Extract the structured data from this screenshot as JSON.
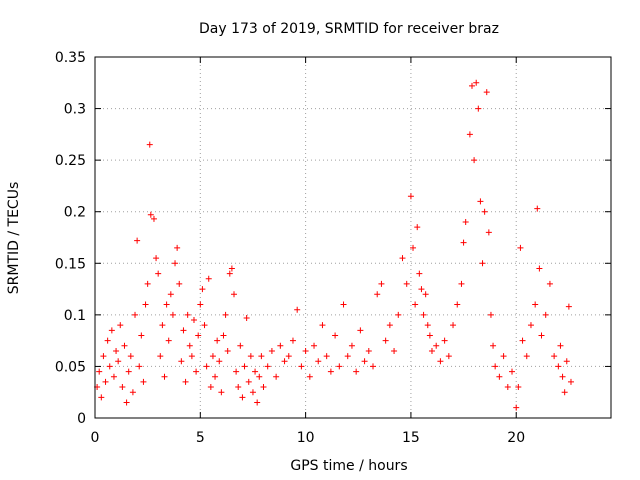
{
  "chart_data": {
    "type": "scatter",
    "title": "Day 173 of 2019, SRMTID for receiver braz",
    "xlabel": "GPS time / hours",
    "ylabel": "SRMTID / TECUs",
    "xlim": [
      0,
      24.5
    ],
    "ylim": [
      0,
      0.35
    ],
    "xticks": [
      0,
      5,
      10,
      15,
      20
    ],
    "xtick_labels": [
      "0",
      "5",
      "10",
      "15",
      "20"
    ],
    "yticks": [
      0,
      0.05,
      0.1,
      0.15,
      0.2,
      0.25,
      0.3,
      0.35
    ],
    "ytick_labels": [
      "0",
      "0.05",
      "0.1",
      "0.15",
      "0.2",
      "0.25",
      "0.3",
      "0.35"
    ],
    "grid": true,
    "marker": "plus",
    "color": "#ff0000",
    "series": [
      {
        "name": "SRMTID",
        "points": [
          [
            0.1,
            0.03
          ],
          [
            0.2,
            0.045
          ],
          [
            0.3,
            0.02
          ],
          [
            0.4,
            0.06
          ],
          [
            0.5,
            0.035
          ],
          [
            0.6,
            0.075
          ],
          [
            0.7,
            0.05
          ],
          [
            0.8,
            0.085
          ],
          [
            0.9,
            0.04
          ],
          [
            1.0,
            0.065
          ],
          [
            1.1,
            0.055
          ],
          [
            1.2,
            0.09
          ],
          [
            1.3,
            0.03
          ],
          [
            1.4,
            0.07
          ],
          [
            1.5,
            0.015
          ],
          [
            1.6,
            0.045
          ],
          [
            1.7,
            0.06
          ],
          [
            1.8,
            0.025
          ],
          [
            1.9,
            0.1
          ],
          [
            2.0,
            0.172
          ],
          [
            2.1,
            0.05
          ],
          [
            2.2,
            0.08
          ],
          [
            2.3,
            0.035
          ],
          [
            2.4,
            0.11
          ],
          [
            2.5,
            0.13
          ],
          [
            2.6,
            0.265
          ],
          [
            2.65,
            0.197
          ],
          [
            2.8,
            0.193
          ],
          [
            2.9,
            0.155
          ],
          [
            3.0,
            0.14
          ],
          [
            3.1,
            0.06
          ],
          [
            3.2,
            0.09
          ],
          [
            3.3,
            0.04
          ],
          [
            3.4,
            0.11
          ],
          [
            3.5,
            0.075
          ],
          [
            3.6,
            0.12
          ],
          [
            3.7,
            0.1
          ],
          [
            3.8,
            0.15
          ],
          [
            3.9,
            0.165
          ],
          [
            4.0,
            0.13
          ],
          [
            4.1,
            0.055
          ],
          [
            4.2,
            0.085
          ],
          [
            4.3,
            0.035
          ],
          [
            4.4,
            0.1
          ],
          [
            4.5,
            0.07
          ],
          [
            4.6,
            0.06
          ],
          [
            4.7,
            0.095
          ],
          [
            4.8,
            0.045
          ],
          [
            4.9,
            0.08
          ],
          [
            5.0,
            0.11
          ],
          [
            5.1,
            0.125
          ],
          [
            5.2,
            0.09
          ],
          [
            5.3,
            0.05
          ],
          [
            5.4,
            0.135
          ],
          [
            5.5,
            0.03
          ],
          [
            5.6,
            0.06
          ],
          [
            5.7,
            0.04
          ],
          [
            5.8,
            0.075
          ],
          [
            5.9,
            0.055
          ],
          [
            6.0,
            0.025
          ],
          [
            6.1,
            0.08
          ],
          [
            6.2,
            0.1
          ],
          [
            6.3,
            0.065
          ],
          [
            6.4,
            0.14
          ],
          [
            6.5,
            0.145
          ],
          [
            6.6,
            0.12
          ],
          [
            6.7,
            0.045
          ],
          [
            6.8,
            0.03
          ],
          [
            6.9,
            0.07
          ],
          [
            7.0,
            0.02
          ],
          [
            7.1,
            0.05
          ],
          [
            7.2,
            0.097
          ],
          [
            7.3,
            0.035
          ],
          [
            7.4,
            0.06
          ],
          [
            7.5,
            0.025
          ],
          [
            7.6,
            0.045
          ],
          [
            7.7,
            0.015
          ],
          [
            7.8,
            0.04
          ],
          [
            7.9,
            0.06
          ],
          [
            8.0,
            0.03
          ],
          [
            8.2,
            0.05
          ],
          [
            8.4,
            0.065
          ],
          [
            8.6,
            0.04
          ],
          [
            8.8,
            0.07
          ],
          [
            9.0,
            0.055
          ],
          [
            9.2,
            0.06
          ],
          [
            9.4,
            0.075
          ],
          [
            9.6,
            0.105
          ],
          [
            9.8,
            0.05
          ],
          [
            10.0,
            0.065
          ],
          [
            10.2,
            0.04
          ],
          [
            10.4,
            0.07
          ],
          [
            10.6,
            0.055
          ],
          [
            10.8,
            0.09
          ],
          [
            11.0,
            0.06
          ],
          [
            11.2,
            0.045
          ],
          [
            11.4,
            0.08
          ],
          [
            11.6,
            0.05
          ],
          [
            11.8,
            0.11
          ],
          [
            12.0,
            0.06
          ],
          [
            12.2,
            0.07
          ],
          [
            12.4,
            0.045
          ],
          [
            12.6,
            0.085
          ],
          [
            12.8,
            0.055
          ],
          [
            13.0,
            0.065
          ],
          [
            13.2,
            0.05
          ],
          [
            13.4,
            0.12
          ],
          [
            13.6,
            0.13
          ],
          [
            13.8,
            0.075
          ],
          [
            14.0,
            0.09
          ],
          [
            14.2,
            0.065
          ],
          [
            14.4,
            0.1
          ],
          [
            14.6,
            0.155
          ],
          [
            14.8,
            0.13
          ],
          [
            15.0,
            0.215
          ],
          [
            15.1,
            0.165
          ],
          [
            15.2,
            0.11
          ],
          [
            15.3,
            0.185
          ],
          [
            15.4,
            0.14
          ],
          [
            15.5,
            0.125
          ],
          [
            15.6,
            0.1
          ],
          [
            15.7,
            0.12
          ],
          [
            15.8,
            0.09
          ],
          [
            15.9,
            0.08
          ],
          [
            16.0,
            0.065
          ],
          [
            16.2,
            0.07
          ],
          [
            16.4,
            0.055
          ],
          [
            16.6,
            0.075
          ],
          [
            16.8,
            0.06
          ],
          [
            17.0,
            0.09
          ],
          [
            17.2,
            0.11
          ],
          [
            17.4,
            0.13
          ],
          [
            17.5,
            0.17
          ],
          [
            17.6,
            0.19
          ],
          [
            17.8,
            0.275
          ],
          [
            17.9,
            0.322
          ],
          [
            18.0,
            0.25
          ],
          [
            18.1,
            0.325
          ],
          [
            18.2,
            0.3
          ],
          [
            18.3,
            0.21
          ],
          [
            18.4,
            0.15
          ],
          [
            18.5,
            0.2
          ],
          [
            18.6,
            0.316
          ],
          [
            18.7,
            0.18
          ],
          [
            18.8,
            0.1
          ],
          [
            18.9,
            0.07
          ],
          [
            19.0,
            0.05
          ],
          [
            19.2,
            0.04
          ],
          [
            19.4,
            0.06
          ],
          [
            19.6,
            0.03
          ],
          [
            19.8,
            0.045
          ],
          [
            20.0,
            0.01
          ],
          [
            20.1,
            0.03
          ],
          [
            20.2,
            0.165
          ],
          [
            20.3,
            0.075
          ],
          [
            20.5,
            0.06
          ],
          [
            20.7,
            0.09
          ],
          [
            20.9,
            0.11
          ],
          [
            21.0,
            0.203
          ],
          [
            21.1,
            0.145
          ],
          [
            21.2,
            0.08
          ],
          [
            21.4,
            0.1
          ],
          [
            21.6,
            0.13
          ],
          [
            21.8,
            0.06
          ],
          [
            22.0,
            0.05
          ],
          [
            22.1,
            0.07
          ],
          [
            22.2,
            0.04
          ],
          [
            22.3,
            0.025
          ],
          [
            22.4,
            0.055
          ],
          [
            22.5,
            0.108
          ],
          [
            22.6,
            0.035
          ]
        ]
      }
    ]
  }
}
